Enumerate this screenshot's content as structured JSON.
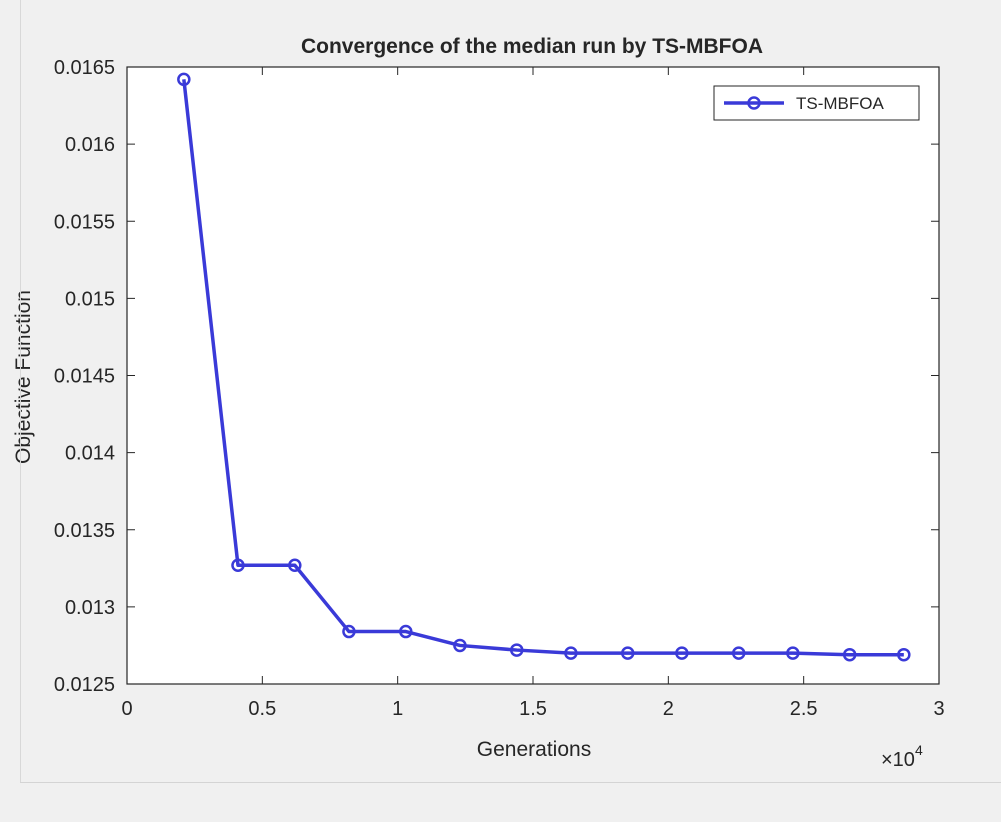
{
  "chart_data": {
    "type": "line",
    "title": "Convergence of the median run by TS-MBFOA",
    "xlabel": "Generations",
    "ylabel": "Objective Function",
    "x_multiplier_label": {
      "base": "×10",
      "exponent": "4"
    },
    "xlim": [
      0,
      30000
    ],
    "ylim": [
      0.0125,
      0.0165
    ],
    "xticks": [
      0,
      5000,
      10000,
      15000,
      20000,
      25000,
      30000
    ],
    "xtick_labels": [
      "0",
      "0.5",
      "1",
      "1.5",
      "2",
      "2.5",
      "3"
    ],
    "yticks": [
      0.0125,
      0.013,
      0.0135,
      0.014,
      0.0145,
      0.015,
      0.0155,
      0.016,
      0.0165
    ],
    "ytick_labels": [
      "0.0125",
      "0.013",
      "0.0135",
      "0.014",
      "0.0145",
      "0.015",
      "0.0155",
      "0.016",
      "0.0165"
    ],
    "grid": false,
    "legend": {
      "position": "top-right"
    },
    "colors": {
      "series": "#3a3ad8",
      "axes": "#262626",
      "background": "#ffffff",
      "figure": "#f0f0f0"
    },
    "series": [
      {
        "name": "TS-MBFOA",
        "marker": "circle",
        "x": [
          2100,
          4100,
          6200,
          8200,
          10300,
          12300,
          14400,
          16400,
          18500,
          20500,
          22600,
          24600,
          26700,
          28700
        ],
        "y": [
          0.01642,
          0.01327,
          0.01327,
          0.01284,
          0.01284,
          0.01275,
          0.01272,
          0.0127,
          0.0127,
          0.0127,
          0.0127,
          0.0127,
          0.01269,
          0.01269
        ]
      }
    ]
  }
}
